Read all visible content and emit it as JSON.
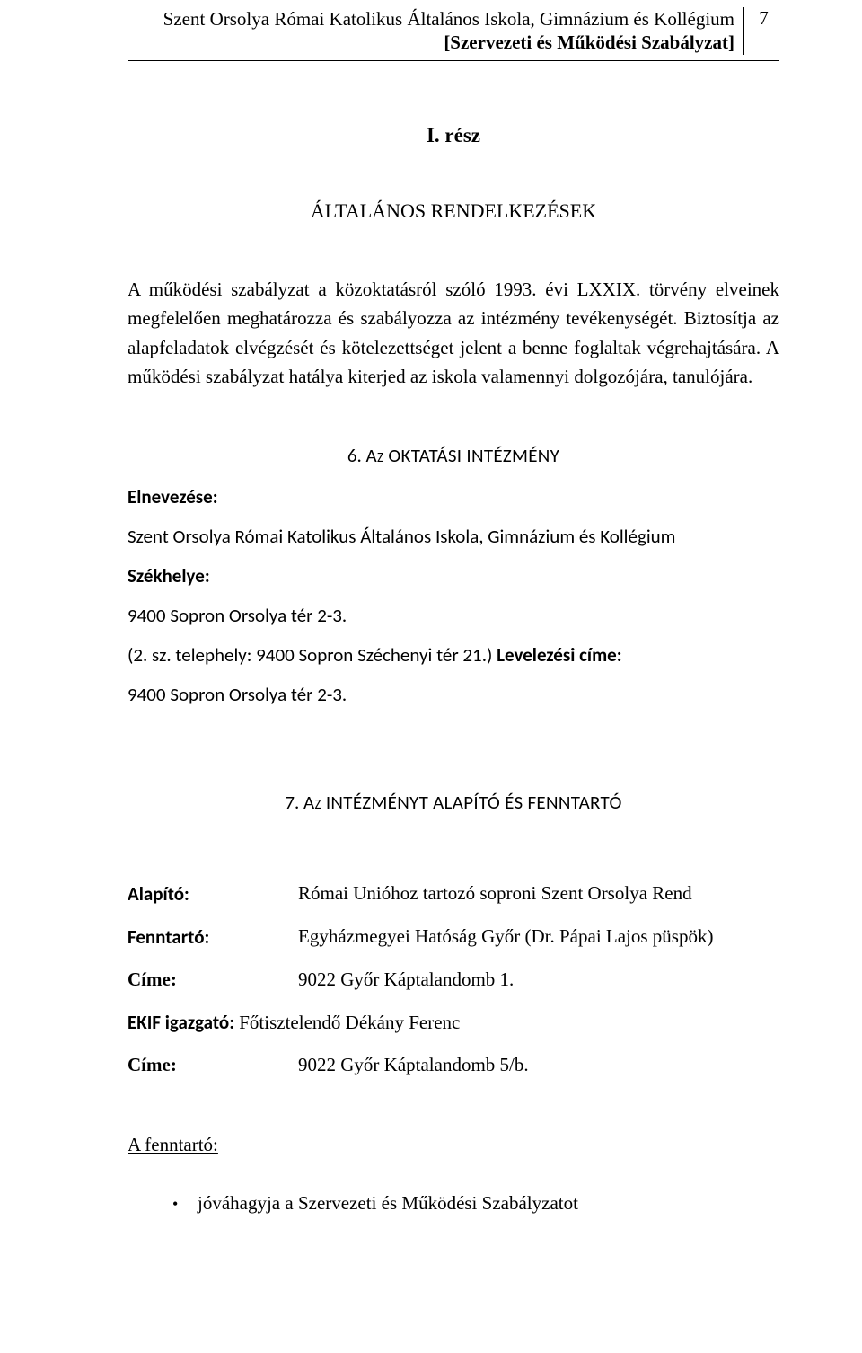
{
  "header": {
    "line1": "Szent Orsolya Római Katolikus Általános Iskola, Gimnázium és Kollégium",
    "line2": "[Szervezeti és Működési Szabályzat]",
    "page_number": "7"
  },
  "part": {
    "label": "I.    rész"
  },
  "general_heading": "ÁLTALÁNOS RENDELKEZÉSEK",
  "intro_paragraph": "A működési szabályzat a közoktatásról szóló 1993. évi LXXIX. törvény elveinek megfelelően meghatározza és szabályozza az intézmény tevékenységét. Biztosítja az alapfeladatok elvégzését és kötelezettséget jelent a benne foglaltak végrehajtására. A működési szabályzat hatálya kiterjed az iskola valamennyi dolgozójára, tanulójára.",
  "section6": {
    "num": "6.",
    "title": "Az OKTATÁSI INTÉZMÉNY",
    "label_name": "Elnevezése:",
    "name_value": "Szent Orsolya Római Katolikus Általános Iskola, Gimnázium és Kollégium",
    "label_seat": "Székhelye:",
    "seat_value": "9400 Sopron Orsolya tér 2-3.",
    "site_prefix": "(2. sz. telephely: 9400 Sopron Széchenyi tér 21.) ",
    "mailing_label": "Levelezési címe:",
    "mailing_value": "9400 Sopron Orsolya tér 2-3."
  },
  "section7": {
    "num": "7.",
    "title": "Az INTÉZMÉNYT ALAPÍTÓ ÉS FENNTARTÓ",
    "rows": [
      {
        "key": "Alapító:",
        "val": "Római Unióhoz tartozó soproni Szent Orsolya Rend"
      },
      {
        "key": "Fenntartó:",
        "val": "Egyházmegyei Hatóság Győr (Dr. Pápai Lajos püspök)"
      },
      {
        "key": "Címe:",
        "val": "9022 Győr Káptalandomb 1."
      }
    ],
    "ekif_key": "EKIF igazgató:",
    "ekif_val": " Főtisztelendő Dékány Ferenc",
    "addr2_key": "Címe:",
    "addr2_val": "9022 Győr Káptalandomb 5/b."
  },
  "maintainer": {
    "label": "A fenntartó:",
    "bullet": "jóváhagyja a Szervezeti és Működési Szabályzatot"
  }
}
